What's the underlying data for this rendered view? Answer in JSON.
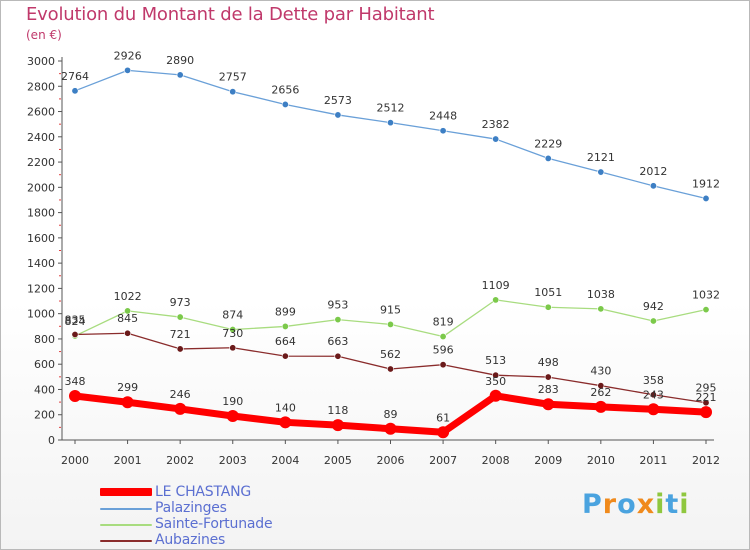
{
  "header": {
    "title": "Evolution du Montant de la Dette par Habitant",
    "unit": "(en €)"
  },
  "brand": {
    "letters": [
      "P",
      "r",
      "o",
      "x",
      "i",
      "t",
      "i"
    ],
    "colors": [
      "#4aa3df",
      "#f08a1c",
      "#4aa3df",
      "#f08a1c",
      "#8fc73e",
      "#4aa3df",
      "#8fc73e"
    ]
  },
  "chart_data": {
    "type": "line",
    "categories": [
      "2000",
      "2001",
      "2002",
      "2003",
      "2004",
      "2005",
      "2006",
      "2007",
      "2008",
      "2009",
      "2010",
      "2011",
      "2012"
    ],
    "ylim": [
      0,
      3000
    ],
    "yticks": [
      0,
      200,
      400,
      600,
      800,
      1000,
      1200,
      1400,
      1600,
      1800,
      2000,
      2200,
      2400,
      2600,
      2800,
      3000
    ],
    "grid": false,
    "legend_position": "bottom-left",
    "series": [
      {
        "name": "LE CHASTANG",
        "color": "#ff0000",
        "line_width": 7,
        "marker_radius": 6,
        "values": [
          348,
          299,
          246,
          190,
          140,
          118,
          89,
          61,
          350,
          283,
          262,
          243,
          221
        ],
        "labels": [
          "348",
          "299",
          "246",
          "190",
          "140",
          "118",
          "89",
          "61",
          "350",
          "283",
          "262",
          "243",
          "221"
        ]
      },
      {
        "name": "Palazinges",
        "color": "#6aa0d8",
        "marker_color": "#3d7fc4",
        "line_width": 1.3,
        "marker_radius": 3.2,
        "values": [
          2764,
          2926,
          2890,
          2757,
          2656,
          2573,
          2512,
          2448,
          2382,
          2229,
          2121,
          2012,
          1912
        ],
        "labels": [
          "2764",
          "2926",
          "2890",
          "2757",
          "2656",
          "2573",
          "2512",
          "2448",
          "2382",
          "2229",
          "2121",
          "2012",
          "1912"
        ]
      },
      {
        "name": "Sainte-Fortunade",
        "color": "#a8dc7f",
        "marker_color": "#7bc94a",
        "line_width": 1.3,
        "marker_radius": 3.2,
        "values": [
          824,
          1022,
          973,
          874,
          899,
          953,
          915,
          819,
          1109,
          1051,
          1038,
          942,
          1032
        ],
        "labels": [
          "824",
          "1022",
          "973",
          "874",
          "899",
          "953",
          "915",
          "819",
          "1109",
          "1051",
          "1038",
          "942",
          "1032"
        ]
      },
      {
        "name": "Aubazines",
        "color": "#8a2c2c",
        "marker_color": "#6b1a1a",
        "line_width": 1.3,
        "marker_radius": 3.2,
        "values": [
          835,
          845,
          721,
          730,
          664,
          663,
          562,
          596,
          513,
          498,
          430,
          358,
          295
        ],
        "labels": [
          "835",
          "845",
          "721",
          "730",
          "664",
          "663",
          "562",
          "596",
          "513",
          "498",
          "430",
          "358",
          "295"
        ]
      }
    ]
  },
  "legend": {
    "items": [
      {
        "label": "LE CHASTANG",
        "color": "#ff0000",
        "thick": true
      },
      {
        "label": "Palazinges",
        "color": "#6aa0d8",
        "thick": false
      },
      {
        "label": "Sainte-Fortunade",
        "color": "#a8dc7f",
        "thick": false
      },
      {
        "label": "Aubazines",
        "color": "#8a2c2c",
        "thick": false
      }
    ]
  }
}
